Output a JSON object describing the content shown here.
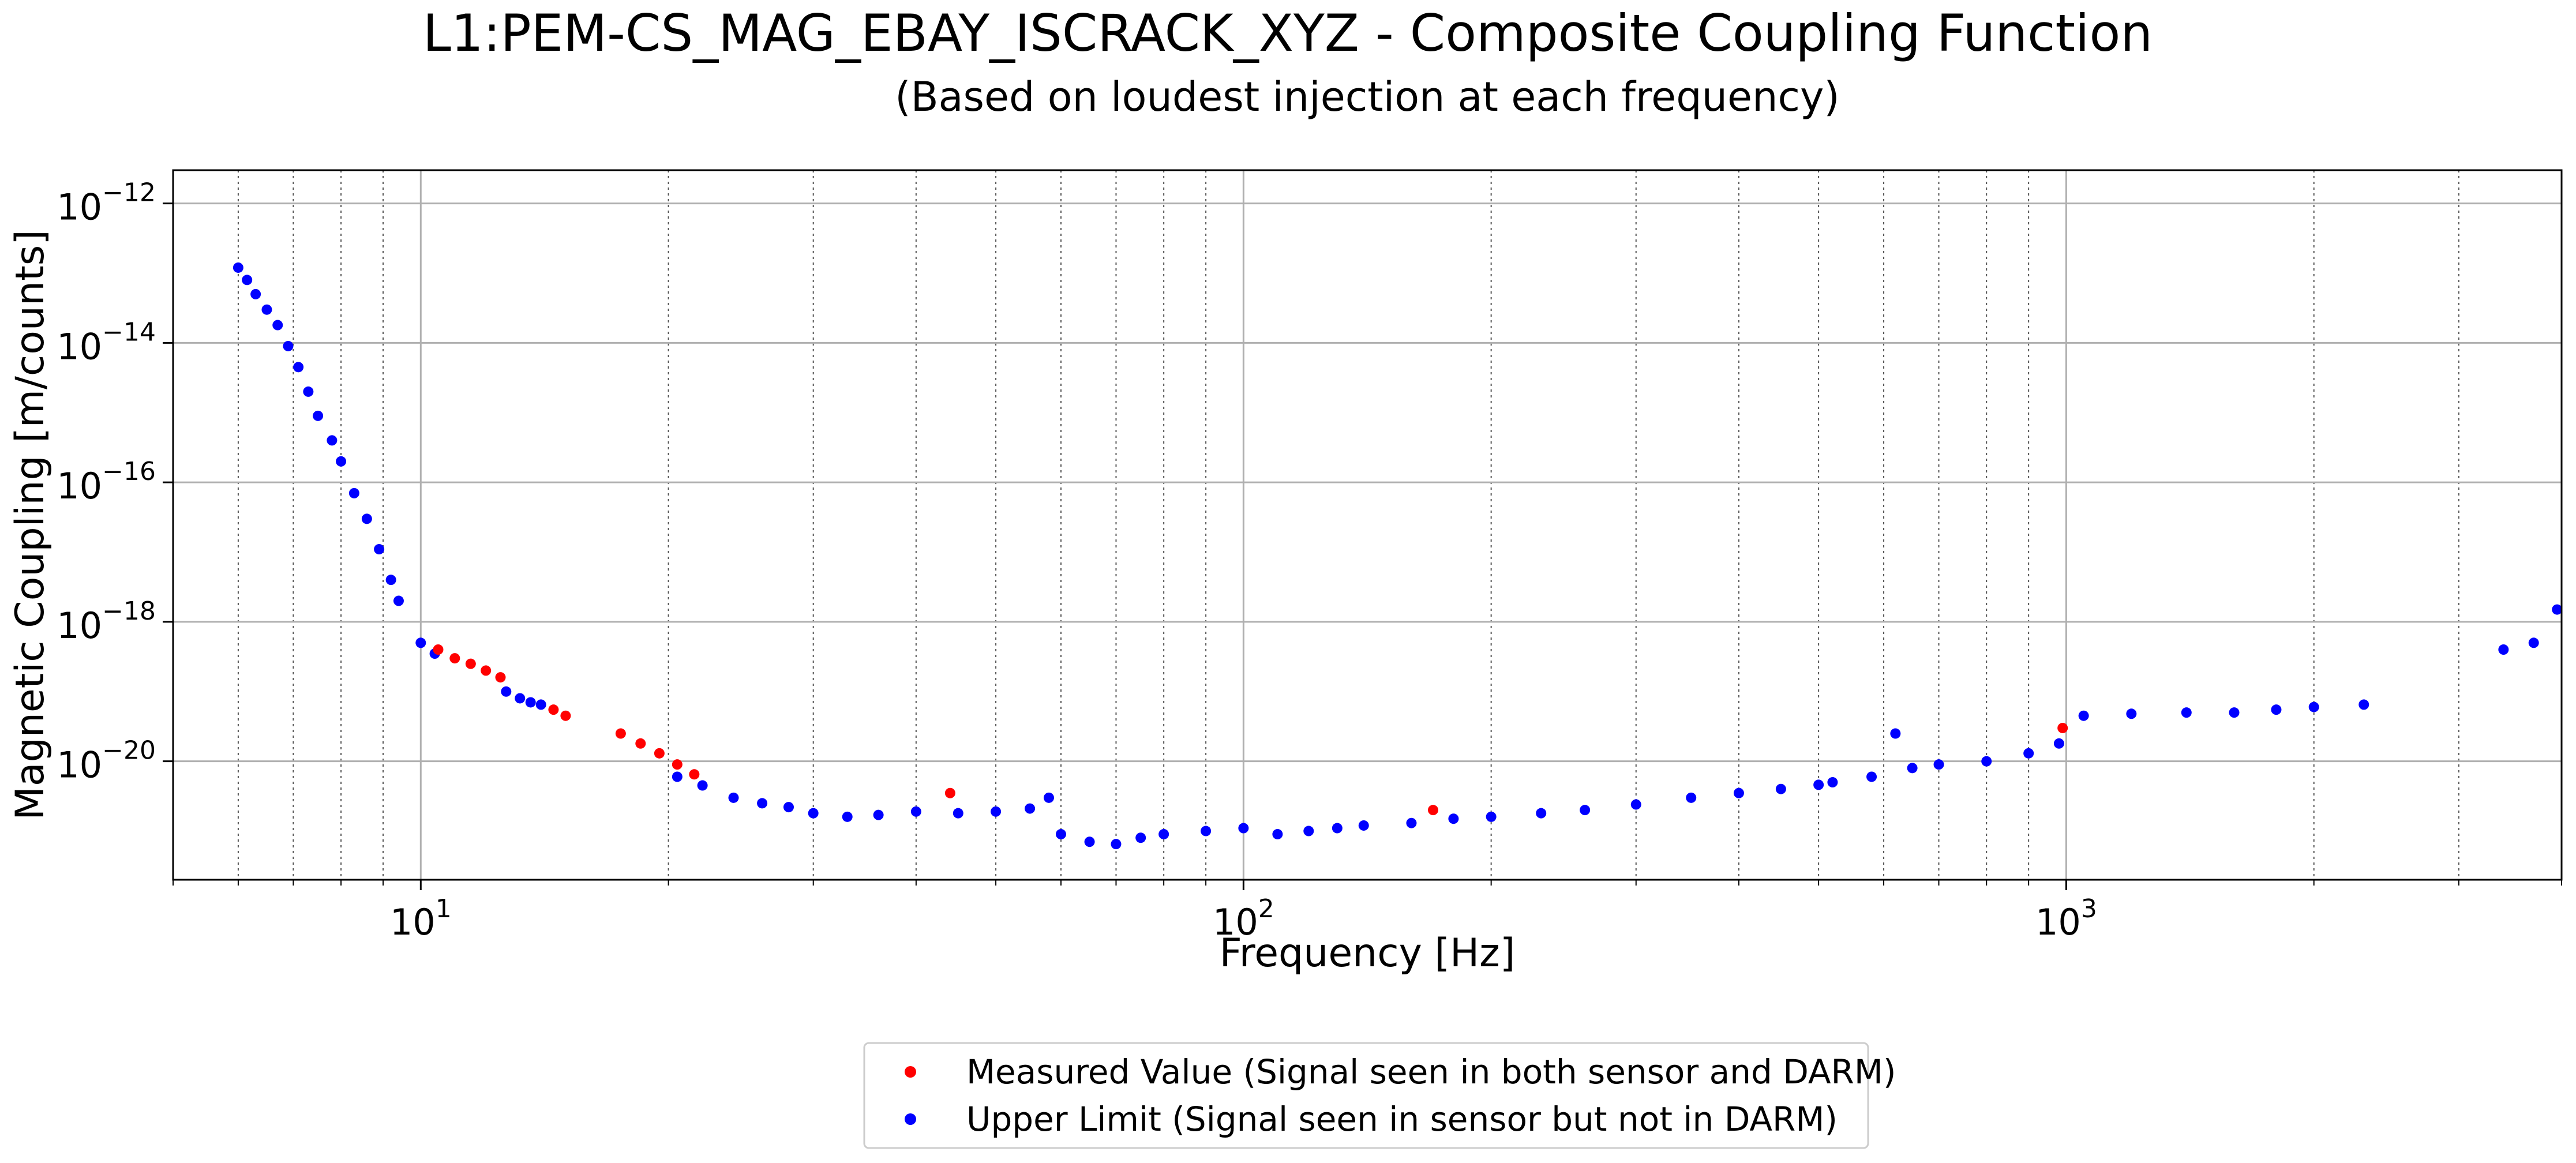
{
  "chart_data": {
    "type": "scatter",
    "title": "L1:PEM-CS_MAG_EBAY_ISCRACK_XYZ - Composite Coupling Function",
    "subtitle": "(Based on loudest injection at each frequency)",
    "xlabel": "Frequency [Hz]",
    "ylabel": "Magnetic Coupling [m/counts]",
    "x_scale": "log",
    "y_scale": "log",
    "xlim": [
      5,
      4000
    ],
    "ylim": [
      2e-22,
      3e-12
    ],
    "grid": true,
    "legend_position": "bottom-center (below axes)",
    "x_ticks": [
      {
        "value": 10,
        "base": "10",
        "exp": "1"
      },
      {
        "value": 100,
        "base": "10",
        "exp": "2"
      },
      {
        "value": 1000,
        "base": "10",
        "exp": "3"
      }
    ],
    "y_ticks": [
      {
        "value": 1e-12,
        "base": "10",
        "exp": "−12"
      },
      {
        "value": 1e-14,
        "base": "10",
        "exp": "−14"
      },
      {
        "value": 1e-16,
        "base": "10",
        "exp": "−16"
      },
      {
        "value": 1e-18,
        "base": "10",
        "exp": "−18"
      },
      {
        "value": 1e-20,
        "base": "10",
        "exp": "−20"
      }
    ],
    "series": [
      {
        "name": "Upper Limit (Signal seen in sensor but not in DARM)",
        "color": "#0000ff",
        "points": [
          [
            6.0,
            1.2e-13
          ],
          [
            6.15,
            8e-14
          ],
          [
            6.3,
            5e-14
          ],
          [
            6.5,
            3e-14
          ],
          [
            6.7,
            1.8e-14
          ],
          [
            6.9,
            9e-15
          ],
          [
            7.1,
            4.5e-15
          ],
          [
            7.3,
            2e-15
          ],
          [
            7.5,
            9e-16
          ],
          [
            7.8,
            4e-16
          ],
          [
            8.0,
            2e-16
          ],
          [
            8.3,
            7e-17
          ],
          [
            8.6,
            3e-17
          ],
          [
            8.9,
            1.1e-17
          ],
          [
            9.2,
            4e-18
          ],
          [
            9.4,
            2e-18
          ],
          [
            10.0,
            5e-19
          ],
          [
            10.4,
            3.5e-19
          ],
          [
            12.7,
            1e-19
          ],
          [
            13.2,
            8e-20
          ],
          [
            13.6,
            7e-20
          ],
          [
            14.0,
            6.5e-20
          ],
          [
            20.5,
            6e-21
          ],
          [
            22.0,
            4.5e-21
          ],
          [
            24.0,
            3e-21
          ],
          [
            26.0,
            2.5e-21
          ],
          [
            28.0,
            2.2e-21
          ],
          [
            30.0,
            1.8e-21
          ],
          [
            33.0,
            1.6e-21
          ],
          [
            36.0,
            1.7e-21
          ],
          [
            40.0,
            1.9e-21
          ],
          [
            45.0,
            1.8e-21
          ],
          [
            50.0,
            1.9e-21
          ],
          [
            55.0,
            2.1e-21
          ],
          [
            58.0,
            3e-21
          ],
          [
            60.0,
            9e-22
          ],
          [
            65.0,
            7e-22
          ],
          [
            70.0,
            6.5e-22
          ],
          [
            75.0,
            8e-22
          ],
          [
            80.0,
            9e-22
          ],
          [
            90.0,
            1e-21
          ],
          [
            100.0,
            1.1e-21
          ],
          [
            110.0,
            9e-22
          ],
          [
            120.0,
            1e-21
          ],
          [
            130.0,
            1.1e-21
          ],
          [
            140.0,
            1.2e-21
          ],
          [
            160.0,
            1.3e-21
          ],
          [
            180.0,
            1.5e-21
          ],
          [
            200.0,
            1.6e-21
          ],
          [
            230.0,
            1.8e-21
          ],
          [
            260.0,
            2e-21
          ],
          [
            300.0,
            2.4e-21
          ],
          [
            350.0,
            3e-21
          ],
          [
            400.0,
            3.5e-21
          ],
          [
            450.0,
            4e-21
          ],
          [
            500.0,
            4.6e-21
          ],
          [
            520.0,
            5e-21
          ],
          [
            580.0,
            6e-21
          ],
          [
            620.0,
            2.5e-20
          ],
          [
            650.0,
            8e-21
          ],
          [
            700.0,
            9e-21
          ],
          [
            800.0,
            1e-20
          ],
          [
            900.0,
            1.3e-20
          ],
          [
            980.0,
            1.8e-20
          ],
          [
            1050.0,
            4.5e-20
          ],
          [
            1200.0,
            4.8e-20
          ],
          [
            1400.0,
            5e-20
          ],
          [
            1600.0,
            5e-20
          ],
          [
            1800.0,
            5.5e-20
          ],
          [
            2000.0,
            6e-20
          ],
          [
            2300.0,
            6.5e-20
          ],
          [
            3400.0,
            4e-19
          ],
          [
            3700.0,
            5e-19
          ],
          [
            3950.0,
            1.5e-18
          ]
        ]
      },
      {
        "name": "Measured Value (Signal seen in both sensor and DARM)",
        "color": "#ff0000",
        "points": [
          [
            10.5,
            4e-19
          ],
          [
            11.0,
            3e-19
          ],
          [
            11.5,
            2.5e-19
          ],
          [
            12.0,
            2e-19
          ],
          [
            12.5,
            1.6e-19
          ],
          [
            14.5,
            5.5e-20
          ],
          [
            15.0,
            4.5e-20
          ],
          [
            17.5,
            2.5e-20
          ],
          [
            18.5,
            1.8e-20
          ],
          [
            19.5,
            1.3e-20
          ],
          [
            20.5,
            9e-21
          ],
          [
            21.5,
            6.5e-21
          ],
          [
            44.0,
            3.5e-21
          ],
          [
            170.0,
            2e-21
          ],
          [
            990.0,
            3e-20
          ]
        ]
      }
    ],
    "legend": [
      {
        "label": "Measured Value (Signal seen in both sensor and DARM)",
        "color": "#ff0000"
      },
      {
        "label": "Upper Limit (Signal seen in sensor but not in DARM)",
        "color": "#0000ff"
      }
    ]
  }
}
